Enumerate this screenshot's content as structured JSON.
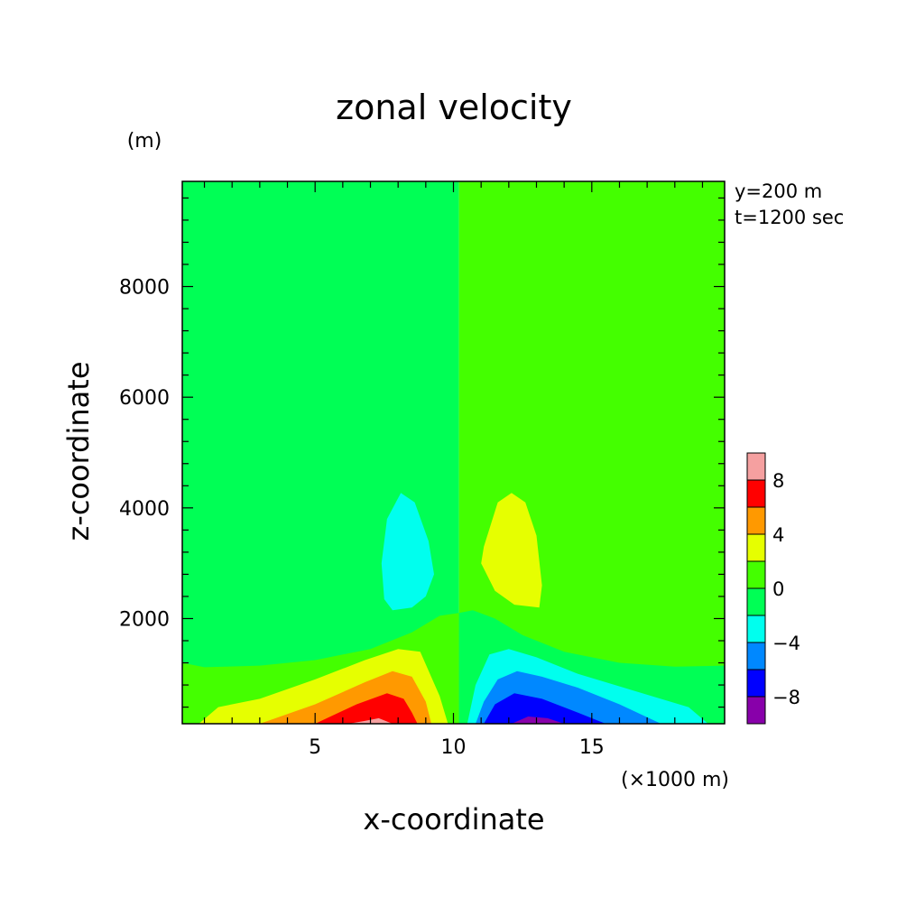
{
  "chart_data": {
    "type": "heatmap",
    "title": "zonal velocity",
    "xlabel": "x-coordinate",
    "ylabel": "z-coordinate",
    "x_unit": "(×1000 m)",
    "y_unit": "(m)",
    "annotations": [
      "y=200 m",
      "t=1200 sec"
    ],
    "xlim": [
      0.2,
      19.8
    ],
    "ylim": [
      100,
      9900
    ],
    "x_ticks": [
      5,
      10,
      15
    ],
    "y_ticks": [
      2000,
      4000,
      6000,
      8000
    ],
    "grid": false,
    "legend_position": "right-bottom",
    "colorbar": {
      "labels": [
        "8",
        "4",
        "0",
        "-4",
        "-8"
      ],
      "label_values": [
        8,
        4,
        0,
        -4,
        -8
      ],
      "levels": [
        {
          "range": [
            8,
            10
          ],
          "color": "#f5a0a0"
        },
        {
          "range": [
            6,
            8
          ],
          "color": "#ff0000"
        },
        {
          "range": [
            4,
            6
          ],
          "color": "#ff9900"
        },
        {
          "range": [
            2,
            4
          ],
          "color": "#e6ff00"
        },
        {
          "range": [
            0,
            2
          ],
          "color": "#44ff00"
        },
        {
          "range": [
            -2,
            0
          ],
          "color": "#00ff55"
        },
        {
          "range": [
            -4,
            -2
          ],
          "color": "#00ffee"
        },
        {
          "range": [
            -6,
            -4
          ],
          "color": "#0088ff"
        },
        {
          "range": [
            -8,
            -6
          ],
          "color": "#0000ff"
        },
        {
          "range": [
            -10,
            -8
          ],
          "color": "#8800aa"
        }
      ]
    },
    "regions": [
      {
        "name": "background-negative",
        "level": -1,
        "points": [
          [
            0.2,
            9900
          ],
          [
            10.2,
            9900
          ],
          [
            10.2,
            100
          ],
          [
            0.2,
            100
          ]
        ]
      },
      {
        "name": "background-positive",
        "level": 1,
        "points": [
          [
            10.2,
            9900
          ],
          [
            19.8,
            9900
          ],
          [
            19.8,
            100
          ],
          [
            10.2,
            100
          ]
        ]
      },
      {
        "name": "near-surface-positive",
        "level": 1,
        "points": [
          [
            0.2,
            1200
          ],
          [
            1.0,
            1120
          ],
          [
            3.0,
            1150
          ],
          [
            5.0,
            1250
          ],
          [
            7.0,
            1450
          ],
          [
            8.5,
            1750
          ],
          [
            9.5,
            2050
          ],
          [
            10.2,
            2100
          ],
          [
            10.2,
            100
          ],
          [
            0.2,
            100
          ]
        ]
      },
      {
        "name": "upper-cyan-blob",
        "level": -3,
        "points": [
          [
            8.1,
            4270
          ],
          [
            8.6,
            4100
          ],
          [
            9.1,
            3400
          ],
          [
            9.3,
            2800
          ],
          [
            9.0,
            2400
          ],
          [
            8.5,
            2200
          ],
          [
            7.8,
            2150
          ],
          [
            7.5,
            2350
          ],
          [
            7.4,
            3000
          ],
          [
            7.6,
            3800
          ]
        ]
      },
      {
        "name": "upper-yellow-blob",
        "level": 3,
        "points": [
          [
            12.1,
            4270
          ],
          [
            11.6,
            4100
          ],
          [
            11.1,
            3300
          ],
          [
            11.0,
            3000
          ],
          [
            11.5,
            2500
          ],
          [
            12.2,
            2250
          ],
          [
            13.1,
            2200
          ],
          [
            13.2,
            2600
          ],
          [
            13.0,
            3500
          ],
          [
            12.6,
            4100
          ]
        ]
      },
      {
        "name": "pos-ring-1",
        "level": 3,
        "points": [
          [
            0.8,
            100
          ],
          [
            1.5,
            400
          ],
          [
            3.0,
            550
          ],
          [
            5.0,
            900
          ],
          [
            6.8,
            1250
          ],
          [
            8.0,
            1450
          ],
          [
            8.8,
            1400
          ],
          [
            9.5,
            600
          ],
          [
            9.8,
            100
          ]
        ]
      },
      {
        "name": "pos-ring-2",
        "level": 5,
        "points": [
          [
            3.0,
            100
          ],
          [
            5.0,
            450
          ],
          [
            6.8,
            850
          ],
          [
            7.8,
            1050
          ],
          [
            8.5,
            950
          ],
          [
            9.0,
            500
          ],
          [
            9.2,
            100
          ]
        ]
      },
      {
        "name": "pos-ring-3",
        "level": 7,
        "points": [
          [
            5.0,
            100
          ],
          [
            6.5,
            450
          ],
          [
            7.6,
            650
          ],
          [
            8.2,
            550
          ],
          [
            8.5,
            300
          ],
          [
            8.7,
            100
          ]
        ]
      },
      {
        "name": "pos-ring-4",
        "level": 9,
        "points": [
          [
            6.2,
            100
          ],
          [
            6.8,
            150
          ],
          [
            7.3,
            200
          ],
          [
            7.8,
            100
          ]
        ]
      },
      {
        "name": "neg-background-right-low",
        "level": -1,
        "points": [
          [
            10.2,
            2100
          ],
          [
            10.7,
            2150
          ],
          [
            11.5,
            2000
          ],
          [
            12.5,
            1700
          ],
          [
            14.0,
            1400
          ],
          [
            16.0,
            1200
          ],
          [
            18.0,
            1130
          ],
          [
            19.8,
            1150
          ],
          [
            19.8,
            100
          ],
          [
            10.2,
            100
          ]
        ]
      },
      {
        "name": "neg-ring-1",
        "level": -3,
        "points": [
          [
            10.5,
            100
          ],
          [
            10.8,
            800
          ],
          [
            11.3,
            1350
          ],
          [
            12.0,
            1450
          ],
          [
            13.0,
            1300
          ],
          [
            14.5,
            1000
          ],
          [
            16.5,
            700
          ],
          [
            18.5,
            400
          ],
          [
            19.2,
            100
          ]
        ]
      },
      {
        "name": "neg-ring-2",
        "level": -5,
        "points": [
          [
            10.8,
            100
          ],
          [
            11.1,
            500
          ],
          [
            11.6,
            900
          ],
          [
            12.3,
            1050
          ],
          [
            13.2,
            950
          ],
          [
            14.5,
            750
          ],
          [
            16.0,
            450
          ],
          [
            17.5,
            100
          ]
        ]
      },
      {
        "name": "neg-ring-3",
        "level": -7,
        "points": [
          [
            11.1,
            100
          ],
          [
            11.5,
            450
          ],
          [
            12.2,
            650
          ],
          [
            13.2,
            550
          ],
          [
            14.5,
            300
          ],
          [
            15.5,
            100
          ]
        ]
      },
      {
        "name": "neg-ring-4",
        "level": -9,
        "points": [
          [
            12.1,
            100
          ],
          [
            12.7,
            230
          ],
          [
            13.4,
            200
          ],
          [
            14.0,
            100
          ]
        ]
      }
    ]
  }
}
